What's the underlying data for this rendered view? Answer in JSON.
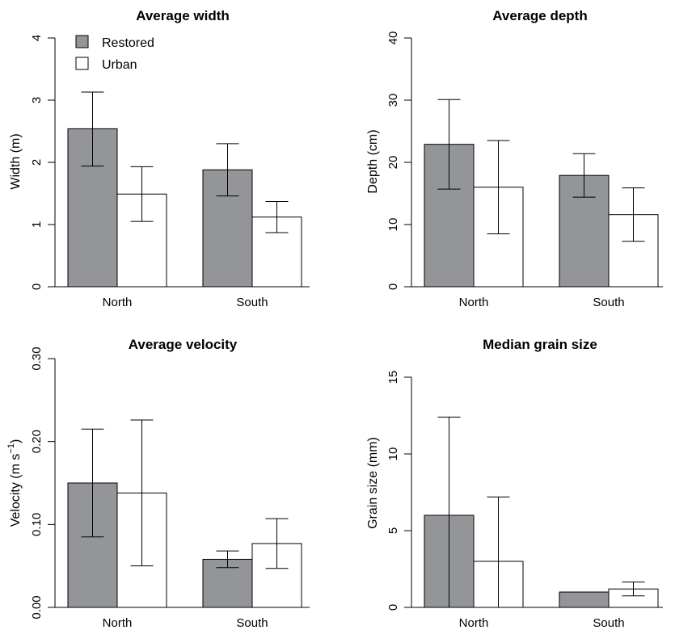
{
  "colors": {
    "restored": "#939598",
    "urban": "#ffffff"
  },
  "legend": {
    "restored_label": "Restored",
    "urban_label": "Urban"
  },
  "chart_data": [
    {
      "type": "bar",
      "title": "Average width",
      "ylabel": "Width (m)",
      "ylim": [
        0,
        4
      ],
      "yticks": [
        0,
        1,
        2,
        3,
        4
      ],
      "ytick_labels": [
        "0",
        "1",
        "2",
        "3",
        "4"
      ],
      "categories": [
        "North",
        "South"
      ],
      "legend": "top-left",
      "series": [
        {
          "name": "Restored",
          "values": [
            2.54,
            1.88
          ],
          "err_low": [
            1.94,
            1.46
          ],
          "err_high": [
            3.13,
            2.3
          ]
        },
        {
          "name": "Urban",
          "values": [
            1.49,
            1.12
          ],
          "err_low": [
            1.05,
            0.87
          ],
          "err_high": [
            1.93,
            1.37
          ]
        }
      ]
    },
    {
      "type": "bar",
      "title": "Average depth",
      "ylabel": "Depth (cm)",
      "ylim": [
        0,
        40
      ],
      "yticks": [
        0,
        10,
        20,
        30,
        40
      ],
      "ytick_labels": [
        "0",
        "10",
        "20",
        "30",
        "40"
      ],
      "categories": [
        "North",
        "South"
      ],
      "series": [
        {
          "name": "Restored",
          "values": [
            22.9,
            17.9
          ],
          "err_low": [
            15.7,
            14.4
          ],
          "err_high": [
            30.1,
            21.4
          ]
        },
        {
          "name": "Urban",
          "values": [
            16.0,
            11.6
          ],
          "err_low": [
            8.5,
            7.3
          ],
          "err_high": [
            23.5,
            15.9
          ]
        }
      ]
    },
    {
      "type": "bar",
      "title": "Average velocity",
      "ylabel_main": "Velocity (m s",
      "ylabel_sup": "−1",
      "ylabel_end": ")",
      "ylim": [
        0,
        0.3
      ],
      "yticks": [
        0,
        0.1,
        0.2,
        0.3
      ],
      "ytick_labels": [
        "0.00",
        "0.10",
        "0.20",
        "0.30"
      ],
      "categories": [
        "North",
        "South"
      ],
      "series": [
        {
          "name": "Restored",
          "values": [
            0.15,
            0.058
          ],
          "err_low": [
            0.085,
            0.048
          ],
          "err_high": [
            0.215,
            0.068
          ]
        },
        {
          "name": "Urban",
          "values": [
            0.138,
            0.077
          ],
          "err_low": [
            0.05,
            0.047
          ],
          "err_high": [
            0.226,
            0.107
          ]
        }
      ]
    },
    {
      "type": "bar",
      "title": "Median grain size",
      "ylabel": "Grain size (mm)",
      "ylim": [
        0,
        15
      ],
      "yticks": [
        0,
        5,
        10,
        15
      ],
      "ytick_labels": [
        "0",
        "5",
        "10",
        "15"
      ],
      "categories": [
        "North",
        "South"
      ],
      "series": [
        {
          "name": "Restored",
          "values": [
            6.0,
            1.0
          ],
          "err_low": [
            0.0,
            1.0
          ],
          "err_high": [
            12.4,
            1.0
          ]
        },
        {
          "name": "Urban",
          "values": [
            3.0,
            1.2
          ],
          "err_low": [
            0.0,
            0.75
          ],
          "err_high": [
            7.2,
            1.65
          ]
        }
      ]
    }
  ]
}
